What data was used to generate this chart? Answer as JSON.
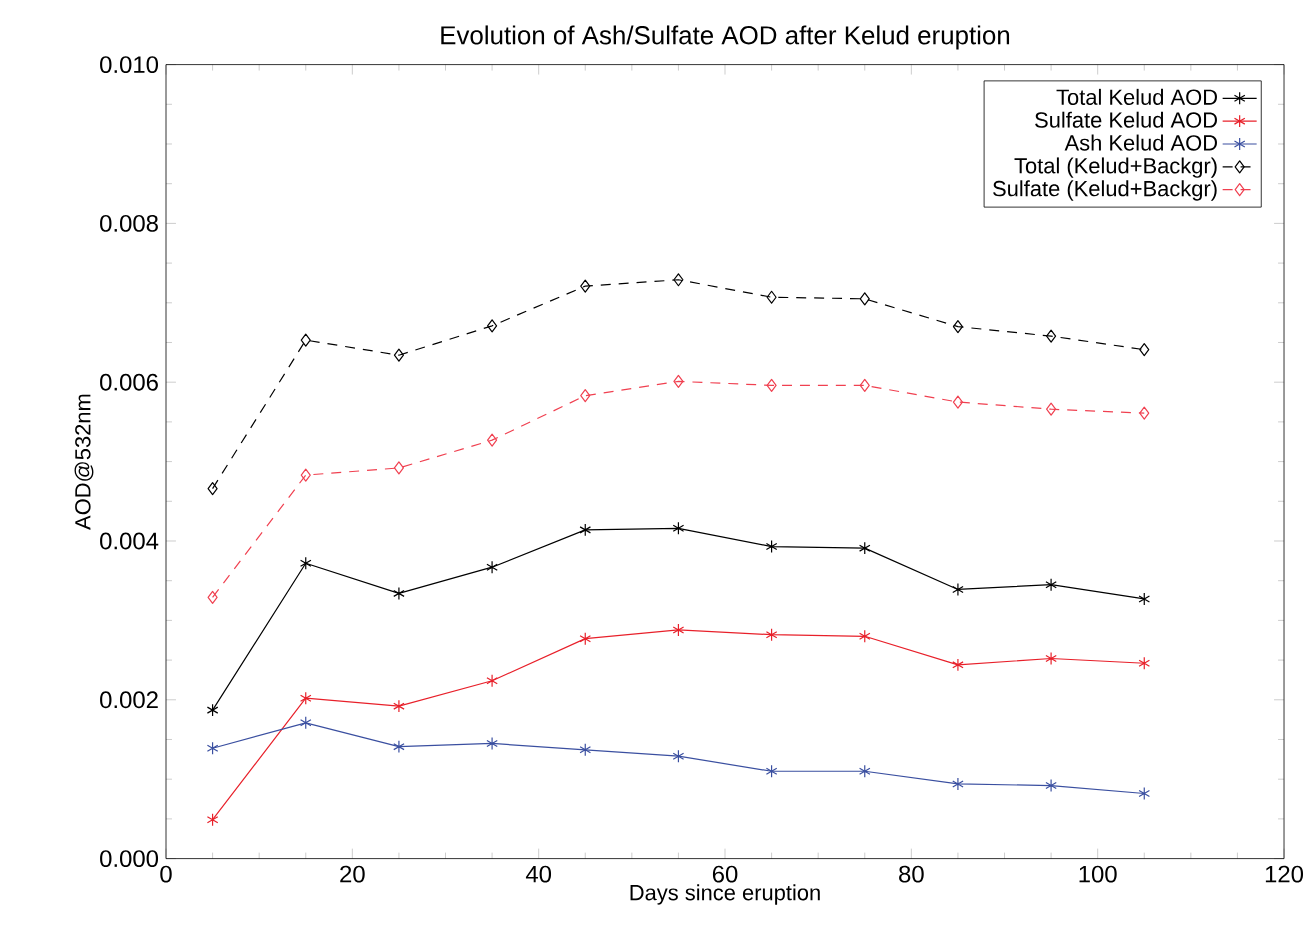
{
  "chart_data": {
    "type": "line",
    "title": "Evolution of Ash/Sulfate AOD after Kelud eruption",
    "xlabel": "Days since eruption",
    "ylabel": "AOD@532nm",
    "x": [
      5,
      15,
      25,
      35,
      45,
      55,
      65,
      75,
      85,
      95,
      105
    ],
    "series": [
      {
        "name": "Total Kelud AOD",
        "color": "#000000",
        "marker": "cross",
        "line_style": "solid",
        "values": [
          0.00187,
          0.00372,
          0.00334,
          0.00367,
          0.00414,
          0.00416,
          0.00393,
          0.00391,
          0.00339,
          0.00345,
          0.00327
        ]
      },
      {
        "name": "Sulfate Kelud AOD",
        "color": "#e8202a",
        "marker": "cross",
        "line_style": "solid",
        "values": [
          0.00049,
          0.00202,
          0.00192,
          0.00224,
          0.00277,
          0.00288,
          0.00282,
          0.0028,
          0.00244,
          0.00252,
          0.00246
        ]
      },
      {
        "name": "Ash Kelud AOD",
        "color": "#3a4fa0",
        "marker": "cross",
        "line_style": "solid",
        "values": [
          0.00139,
          0.00171,
          0.00141,
          0.00145,
          0.00137,
          0.00129,
          0.0011,
          0.0011,
          0.00094,
          0.00092,
          0.00082
        ]
      },
      {
        "name": "Total (Kelud+Backgr)",
        "color": "#000000",
        "marker": "diamond",
        "line_style": "dashed",
        "values": [
          0.00466,
          0.00653,
          0.00634,
          0.00671,
          0.00721,
          0.00729,
          0.00707,
          0.00705,
          0.0067,
          0.00658,
          0.00641
        ]
      },
      {
        "name": "Sulfate (Kelud+Backgr)",
        "color": "#f04050",
        "marker": "diamond",
        "line_style": "dashed",
        "values": [
          0.00329,
          0.00483,
          0.00492,
          0.00527,
          0.00583,
          0.00601,
          0.00596,
          0.00596,
          0.00575,
          0.00566,
          0.00561
        ]
      }
    ],
    "xlim": [
      0,
      120
    ],
    "ylim": [
      0,
      0.01
    ],
    "xticks": [
      0,
      20,
      40,
      60,
      80,
      100,
      120
    ],
    "yticks": [
      {
        "value": 0,
        "label": "0.000"
      },
      {
        "value": 0.002,
        "label": "0.002"
      },
      {
        "value": 0.004,
        "label": "0.004"
      },
      {
        "value": 0.006,
        "label": "0.006"
      },
      {
        "value": 0.008,
        "label": "0.008"
      },
      {
        "value": 0.01,
        "label": "0.010"
      }
    ],
    "legend": "top right"
  }
}
